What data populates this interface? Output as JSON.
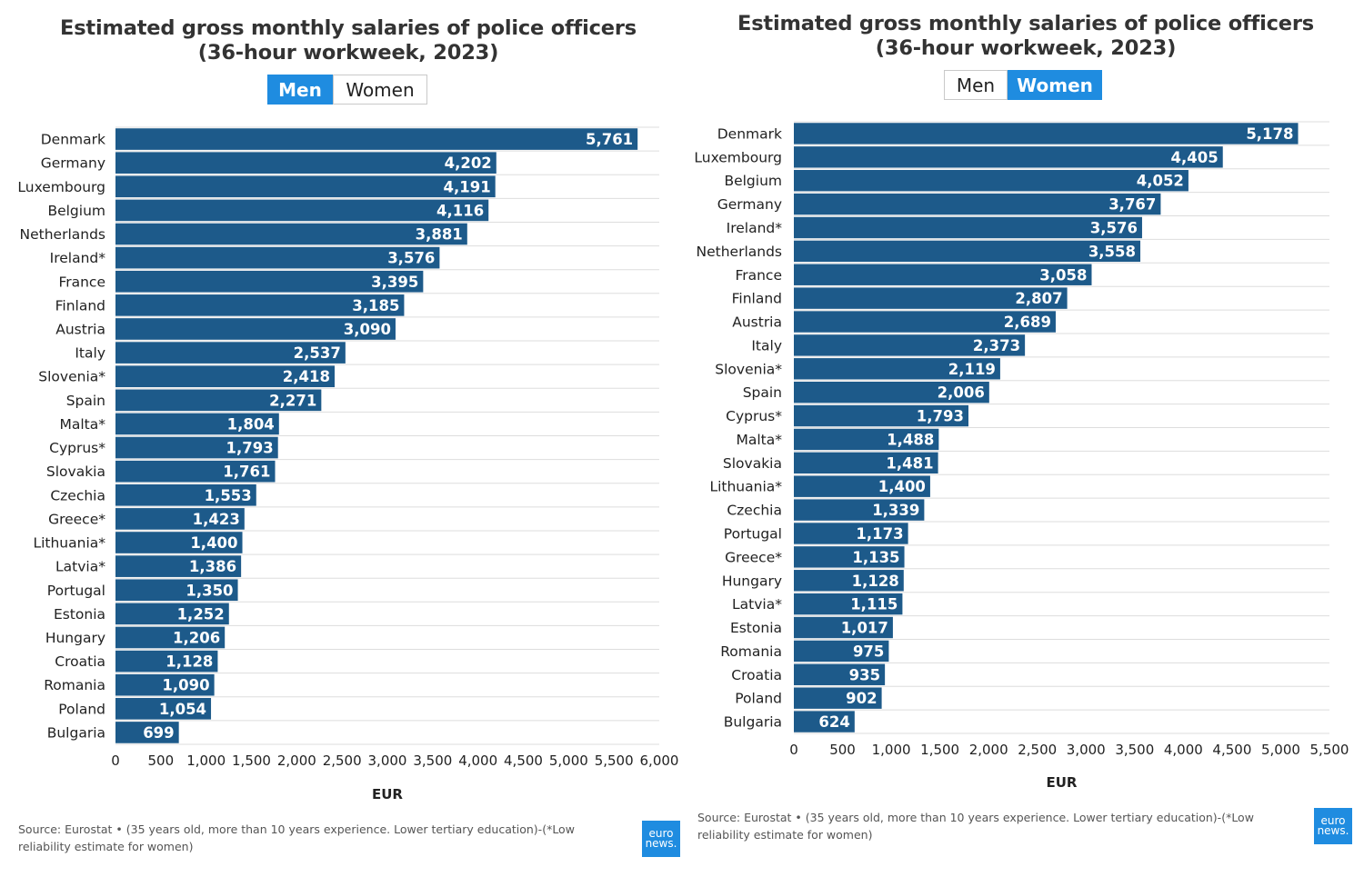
{
  "colors": {
    "bar": "#1d5a8a",
    "toggle_active": "#1f8ce0",
    "grid": "#dddddd"
  },
  "chart_data": [
    {
      "type": "bar",
      "orientation": "horizontal",
      "title": "Estimated gross monthly salaries of police officers (36-hour workweek, 2023)",
      "toggle": {
        "options": [
          "Men",
          "Women"
        ],
        "selected": "Men"
      },
      "categories": [
        "Denmark",
        "Germany",
        "Luxembourg",
        "Belgium",
        "Netherlands",
        "Ireland*",
        "France",
        "Finland",
        "Austria",
        "Italy",
        "Slovenia*",
        "Spain",
        "Malta*",
        "Cyprus*",
        "Slovakia",
        "Czechia",
        "Greece*",
        "Lithuania*",
        "Latvia*",
        "Portugal",
        "Estonia",
        "Hungary",
        "Croatia",
        "Romania",
        "Poland",
        "Bulgaria"
      ],
      "values": [
        5761,
        4202,
        4191,
        4116,
        3881,
        3576,
        3395,
        3185,
        3090,
        2537,
        2418,
        2271,
        1804,
        1793,
        1761,
        1553,
        1423,
        1400,
        1386,
        1350,
        1252,
        1206,
        1128,
        1090,
        1054,
        699
      ],
      "value_labels": [
        "5,761",
        "4,202",
        "4,191",
        "4,116",
        "3,881",
        "3,576",
        "3,395",
        "3,185",
        "3,090",
        "2,537",
        "2,418",
        "2,271",
        "1,804",
        "1,793",
        "1,761",
        "1,553",
        "1,423",
        "1,400",
        "1,386",
        "1,350",
        "1,252",
        "1,206",
        "1,128",
        "1,090",
        "1,054",
        "699"
      ],
      "xlabel": "EUR",
      "xlim": [
        0,
        6000
      ],
      "xticks": [
        "0",
        "500",
        "1,000",
        "1,500",
        "2,000",
        "2,500",
        "3,000",
        "3,500",
        "4,000",
        "4,500",
        "5,000",
        "5,500",
        "6,000"
      ],
      "grid": true,
      "source": "Source: Eurostat • (35 years old, more than 10 years experience. Lower tertiary education)-(*Low reliability estimate for women)",
      "logo": [
        "euro",
        "news."
      ]
    },
    {
      "type": "bar",
      "orientation": "horizontal",
      "title": "Estimated gross monthly salaries of police officers (36-hour workweek, 2023)",
      "toggle": {
        "options": [
          "Men",
          "Women"
        ],
        "selected": "Women"
      },
      "categories": [
        "Denmark",
        "Luxembourg",
        "Belgium",
        "Germany",
        "Ireland*",
        "Netherlands",
        "France",
        "Finland",
        "Austria",
        "Italy",
        "Slovenia*",
        "Spain",
        "Cyprus*",
        "Malta*",
        "Slovakia",
        "Lithuania*",
        "Czechia",
        "Portugal",
        "Greece*",
        "Hungary",
        "Latvia*",
        "Estonia",
        "Romania",
        "Croatia",
        "Poland",
        "Bulgaria"
      ],
      "values": [
        5178,
        4405,
        4052,
        3767,
        3576,
        3558,
        3058,
        2807,
        2689,
        2373,
        2119,
        2006,
        1793,
        1488,
        1481,
        1400,
        1339,
        1173,
        1135,
        1128,
        1115,
        1017,
        975,
        935,
        902,
        624
      ],
      "value_labels": [
        "5,178",
        "4,405",
        "4,052",
        "3,767",
        "3,576",
        "3,558",
        "3,058",
        "2,807",
        "2,689",
        "2,373",
        "2,119",
        "2,006",
        "1,793",
        "1,488",
        "1,481",
        "1,400",
        "1,339",
        "1,173",
        "1,135",
        "1,128",
        "1,115",
        "1,017",
        "975",
        "935",
        "902",
        "624"
      ],
      "xlabel": "EUR",
      "xlim": [
        0,
        5500
      ],
      "xticks": [
        "0",
        "500",
        "1,000",
        "1,500",
        "2,000",
        "2,500",
        "3,000",
        "3,500",
        "4,000",
        "4,500",
        "5,000",
        "5,500"
      ],
      "grid": true,
      "source": "Source: Eurostat • (35 years old, more than 10 years experience. Lower tertiary education)-(*Low reliability estimate for women)",
      "logo": [
        "euro",
        "news."
      ]
    }
  ]
}
